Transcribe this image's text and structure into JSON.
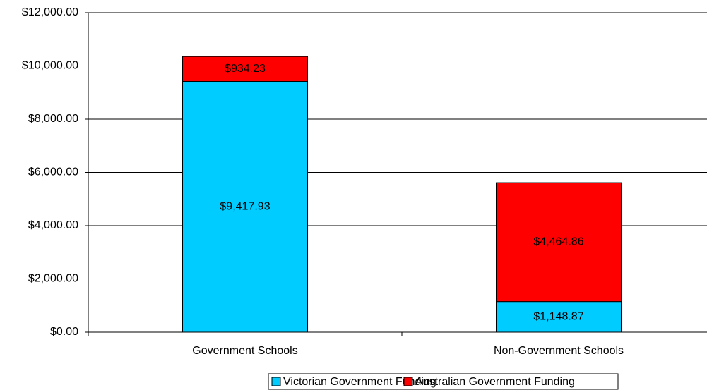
{
  "chart_data": {
    "type": "stacked_bar",
    "categories": [
      "Government Schools",
      "Non-Government Schools"
    ],
    "series": [
      {
        "name": "Victorian Government Funding",
        "color": "#00ccff",
        "values": [
          9417.93,
          1148.87
        ],
        "value_labels": [
          "$9,417.93",
          "$1,148.87"
        ]
      },
      {
        "name": "Australian Government Funding",
        "color": "#ff0000",
        "values": [
          934.23,
          4464.86
        ],
        "value_labels": [
          "$934.23",
          "$4,464.86"
        ]
      }
    ],
    "ylim": [
      0,
      12000
    ],
    "yticks": [
      {
        "value": 0,
        "label": "$0.00"
      },
      {
        "value": 2000,
        "label": "$2,000.00"
      },
      {
        "value": 4000,
        "label": "$4,000.00"
      },
      {
        "value": 6000,
        "label": "$6,000.00"
      },
      {
        "value": 8000,
        "label": "$8,000.00"
      },
      {
        "value": 10000,
        "label": "$10,000.00"
      },
      {
        "value": 12000,
        "label": "$12,000.00"
      }
    ],
    "grid": true,
    "legend": "bottom"
  }
}
